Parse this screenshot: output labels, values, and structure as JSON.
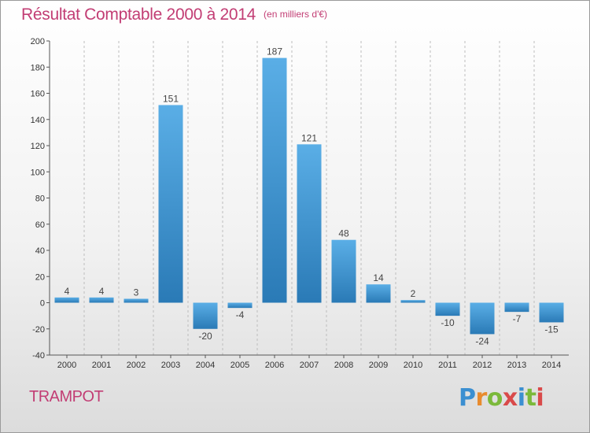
{
  "title": "Résultat Comptable 2000 à 2014",
  "unit_note": "(en milliers d'€)",
  "commune": "TRAMPOT",
  "brand": {
    "text": "Proxiti",
    "letter_colors": [
      "#3b8fd1",
      "#e88b2e",
      "#7bb93b",
      "#d94a4a",
      "#3b8fd1",
      "#7bb93b",
      "#d94a4a"
    ]
  },
  "colors": {
    "title": "#c23d74",
    "bar_top": "#5aaee6",
    "bar_bottom": "#2a7ab6",
    "grid": "#bdbdbd"
  },
  "chart_data": {
    "type": "bar",
    "categories": [
      "2000",
      "2001",
      "2002",
      "2003",
      "2004",
      "2005",
      "2006",
      "2007",
      "2008",
      "2009",
      "2010",
      "2011",
      "2012",
      "2013",
      "2014"
    ],
    "values": [
      4,
      4,
      3,
      151,
      -20,
      -4,
      187,
      121,
      48,
      14,
      2,
      -10,
      -24,
      -7,
      -15
    ],
    "ylim": [
      -40,
      200
    ],
    "yticks": [
      -40,
      -20,
      0,
      20,
      40,
      60,
      80,
      100,
      120,
      140,
      160,
      180,
      200
    ],
    "grid": "vertical dashed lines between categories",
    "data_labels": true
  }
}
